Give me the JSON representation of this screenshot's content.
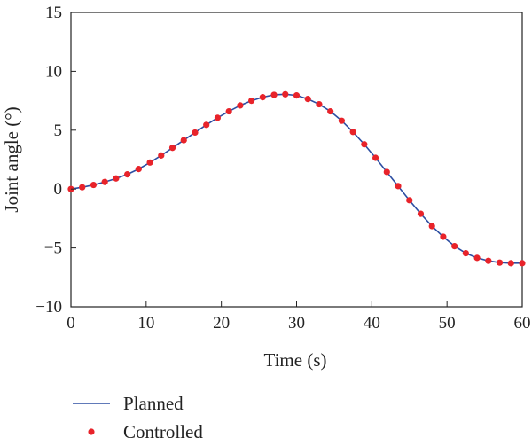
{
  "chart_data": {
    "type": "line",
    "xlabel": "Time (s)",
    "ylabel": "Joint angle (°)",
    "xlim": [
      0,
      60
    ],
    "ylim": [
      -10,
      15
    ],
    "x_ticks": [
      0,
      10,
      20,
      30,
      40,
      50,
      60
    ],
    "y_ticks": [
      -10,
      -5,
      0,
      5,
      10,
      15
    ],
    "x_tick_labels": [
      "0",
      "10",
      "20",
      "30",
      "40",
      "50",
      "60"
    ],
    "y_tick_labels": [
      "−10",
      "−5",
      "0",
      "5",
      "10",
      "15"
    ],
    "grid": false,
    "legend_position": "below",
    "x": [
      0,
      1.5,
      3,
      4.5,
      6,
      7.5,
      9,
      10.5,
      12,
      13.5,
      15,
      16.5,
      18,
      19.5,
      21,
      22.5,
      24,
      25.5,
      27,
      28.5,
      30,
      31.5,
      33,
      34.5,
      36,
      37.5,
      39,
      40.5,
      42,
      43.5,
      45,
      46.5,
      48,
      49.5,
      51,
      52.5,
      54,
      55.5,
      57,
      58.5,
      60
    ],
    "series": [
      {
        "name": "Planned",
        "style": "line",
        "color": "#2d4ea2",
        "values": [
          0.0,
          0.15,
          0.35,
          0.6,
          0.9,
          1.25,
          1.7,
          2.25,
          2.85,
          3.5,
          4.15,
          4.8,
          5.45,
          6.05,
          6.6,
          7.1,
          7.5,
          7.8,
          8.0,
          8.05,
          7.95,
          7.65,
          7.2,
          6.6,
          5.8,
          4.85,
          3.8,
          2.65,
          1.45,
          0.25,
          -0.95,
          -2.1,
          -3.15,
          -4.05,
          -4.85,
          -5.45,
          -5.85,
          -6.1,
          -6.25,
          -6.3,
          -6.3
        ]
      },
      {
        "name": "Controlled",
        "style": "markers",
        "color": "#e8232a",
        "values": [
          0.0,
          0.15,
          0.35,
          0.6,
          0.9,
          1.25,
          1.7,
          2.25,
          2.85,
          3.5,
          4.15,
          4.8,
          5.45,
          6.05,
          6.6,
          7.1,
          7.5,
          7.8,
          8.0,
          8.05,
          7.95,
          7.65,
          7.2,
          6.6,
          5.8,
          4.85,
          3.8,
          2.65,
          1.45,
          0.25,
          -0.95,
          -2.1,
          -3.15,
          -4.05,
          -4.85,
          -5.45,
          -5.85,
          -6.1,
          -6.25,
          -6.3,
          -6.3
        ]
      }
    ]
  }
}
